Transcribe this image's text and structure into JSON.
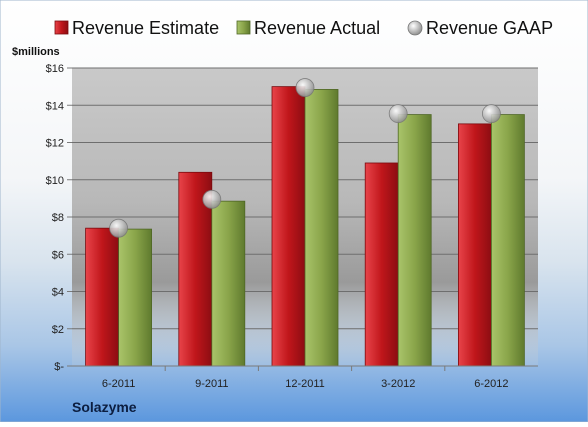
{
  "chart_data": {
    "type": "bar",
    "company": "Solazyme",
    "ylabel": "$millions",
    "categories": [
      "6-2011",
      "9-2011",
      "12-2011",
      "3-2012",
      "6-2012"
    ],
    "series": [
      {
        "name": "Revenue Estimate",
        "kind": "bar",
        "color": "#c0161b",
        "values": [
          7.4,
          10.4,
          15.0,
          10.9,
          13.0
        ]
      },
      {
        "name": "Revenue Actual",
        "kind": "bar",
        "color": "#8aa54a",
        "values": [
          7.35,
          8.85,
          14.85,
          13.5,
          13.5
        ]
      },
      {
        "name": "Revenue GAAP",
        "kind": "marker",
        "color": "#b8b8b8",
        "values": [
          7.4,
          8.95,
          14.95,
          13.55,
          13.55
        ]
      }
    ],
    "ylim": [
      0,
      16
    ],
    "yticks": [
      0,
      2,
      4,
      6,
      8,
      10,
      12,
      14,
      16
    ],
    "ytick_labels": [
      "$-",
      "$2",
      "$4",
      "$6",
      "$8",
      "$10",
      "$12",
      "$14",
      "$16"
    ],
    "grid": true,
    "legend_position": "top"
  }
}
